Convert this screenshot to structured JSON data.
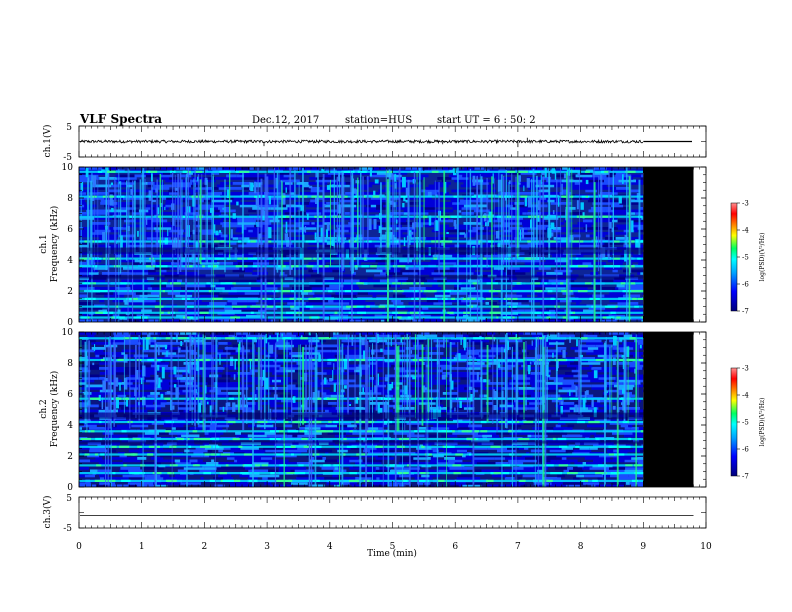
{
  "header": {
    "title": "VLF Spectra",
    "date": "Dec.12, 2017",
    "station": "station=HUS",
    "start": "start  UT =  6 : 50: 2"
  },
  "colorbar_label": "log(PSD)(V²/Hz)",
  "colors": {
    "spectrogram_background": "#0a1070",
    "no_data": "#000000",
    "colormap": [
      "#00007a",
      "#0000ff",
      "#00a0ff",
      "#00ffff",
      "#00ff60",
      "#ffff00",
      "#ff8000",
      "#ff0000",
      "#ff9090"
    ]
  },
  "chart_data": [
    {
      "id": "ch1_waveform",
      "type": "line",
      "ylabel": "ch.1(V)",
      "ylim": [
        -5,
        5
      ],
      "yticks": [
        "5",
        "-5"
      ],
      "xlim": [
        0,
        10
      ],
      "baseline_v": 0,
      "data_end_min": 9.0,
      "spikes": [
        {
          "t": 2.95,
          "v": -1.5
        },
        {
          "t": 7.0,
          "v": -1.8
        },
        {
          "t": 7.15,
          "v": 1.2
        },
        {
          "t": 5.8,
          "v": -0.9
        }
      ],
      "after_end_level_v": 0
    },
    {
      "id": "ch1_spectrogram",
      "type": "heatmap",
      "ylabel_line1": "ch.1",
      "ylabel_line2": "Frequency (kHz)",
      "ylim": [
        0,
        10
      ],
      "yticks": [
        "0",
        "2",
        "4",
        "6",
        "8",
        "10"
      ],
      "xlim": [
        0,
        10
      ],
      "data_end_min": 9.0,
      "no_data_span_min": [
        9.0,
        9.8
      ],
      "bright_bands_khz": [
        0.3,
        0.6,
        1.0,
        1.5,
        2.0,
        2.5,
        3.6,
        4.1,
        5.2,
        6.8,
        8.1,
        9.7
      ],
      "colorbar": {
        "ticks": [
          "-3",
          "-4",
          "-5",
          "-6",
          "-7"
        ],
        "range": [
          -7,
          -3
        ]
      }
    },
    {
      "id": "ch2_spectrogram",
      "type": "heatmap",
      "ylabel_line1": "ch.2",
      "ylabel_line2": "Frequency (kHz)",
      "ylim": [
        0,
        10
      ],
      "yticks": [
        "0",
        "2",
        "4",
        "6",
        "8",
        "10"
      ],
      "xlim": [
        0,
        10
      ],
      "data_end_min": 9.0,
      "no_data_span_min": [
        9.0,
        9.8
      ],
      "bright_bands_khz": [
        0.4,
        0.9,
        1.4,
        2.1,
        2.6,
        3.1,
        3.6,
        4.2,
        5.7,
        8.2,
        9.6
      ],
      "colorbar": {
        "ticks": [
          "-3",
          "-4",
          "-5",
          "-6",
          "-7"
        ],
        "range": [
          -7,
          -3
        ]
      }
    },
    {
      "id": "ch3_waveform",
      "type": "line",
      "ylabel": "ch.3(V)",
      "ylim": [
        -5,
        5
      ],
      "yticks": [
        "5",
        "-5"
      ],
      "xlim": [
        0,
        9.8
      ],
      "flat_value_v": -1
    }
  ],
  "x_axis": {
    "label": "Time (min)",
    "ticks": [
      "0",
      "1",
      "2",
      "3",
      "4",
      "5",
      "6",
      "7",
      "8",
      "9",
      "10"
    ],
    "range": [
      0,
      10
    ]
  }
}
